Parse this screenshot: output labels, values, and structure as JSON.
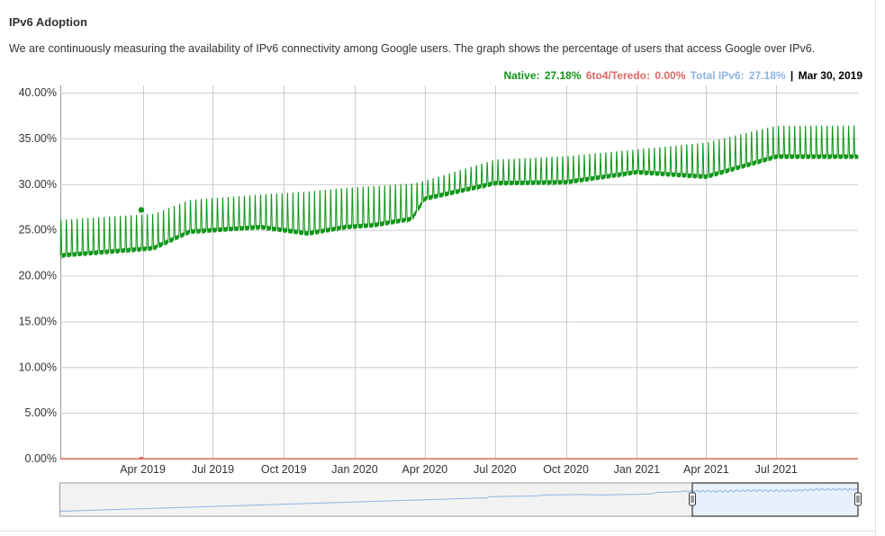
{
  "header": {
    "title": "IPv6 Adoption",
    "description": "We are continuously measuring the availability of IPv6 connectivity among Google users. The graph shows the percentage of users that access Google over IPv6."
  },
  "legend": {
    "native_label": "Native:",
    "native_value": "27.18%",
    "teredo_label": "6to4/Teredo:",
    "teredo_value": "0.00%",
    "total_label": "Total IPv6:",
    "total_value": "27.18%",
    "separator": "|",
    "date": "Mar 30, 2019"
  },
  "colors": {
    "native": "#109618",
    "teredo": "#dc3912",
    "total": "#8eb4e3",
    "grid": "#cccccc",
    "navigator_fill": "#e8f0fb"
  },
  "chart_data": {
    "type": "line",
    "title": "",
    "xlabel": "",
    "ylabel": "",
    "x_range": [
      "2018-12-15",
      "2021-10-15"
    ],
    "ylim": [
      0,
      40
    ],
    "y_ticks": [
      0,
      5,
      10,
      15,
      20,
      25,
      30,
      35,
      40
    ],
    "y_tick_labels": [
      "0.00%",
      "5.00%",
      "10.00%",
      "15.00%",
      "20.00%",
      "25.00%",
      "30.00%",
      "35.00%",
      "40.00%"
    ],
    "x_ticks": [
      "2019-04-01",
      "2019-07-01",
      "2019-10-01",
      "2020-01-01",
      "2020-04-01",
      "2020-07-01",
      "2020-10-01",
      "2021-01-01",
      "2021-04-01",
      "2021-07-01"
    ],
    "x_tick_labels": [
      "Apr 2019",
      "Jul 2019",
      "Oct 2019",
      "Jan 2020",
      "Apr 2020",
      "Jul 2020",
      "Oct 2020",
      "Jan 2021",
      "Apr 2021",
      "Jul 2021"
    ],
    "grid": true,
    "weekly_oscillation": true,
    "series": [
      {
        "name": "Native",
        "color": "#109618",
        "weekday_baseline": [
          {
            "x": "2018-12-15",
            "y": 22.2
          },
          {
            "x": "2019-03-01",
            "y": 22.7
          },
          {
            "x": "2019-04-15",
            "y": 23.0
          },
          {
            "x": "2019-06-01",
            "y": 24.8
          },
          {
            "x": "2019-09-01",
            "y": 25.3
          },
          {
            "x": "2019-11-01",
            "y": 24.6
          },
          {
            "x": "2019-12-20",
            "y": 25.3
          },
          {
            "x": "2020-01-25",
            "y": 25.5
          },
          {
            "x": "2020-03-15",
            "y": 26.2
          },
          {
            "x": "2020-04-01",
            "y": 28.4
          },
          {
            "x": "2020-07-01",
            "y": 30.1
          },
          {
            "x": "2020-10-01",
            "y": 30.2
          },
          {
            "x": "2021-01-01",
            "y": 31.3
          },
          {
            "x": "2021-04-01",
            "y": 30.8
          },
          {
            "x": "2021-07-01",
            "y": 33.0
          },
          {
            "x": "2021-10-15",
            "y": 33.0
          }
        ],
        "weekend_peak": [
          {
            "x": "2018-12-15",
            "y": 26.6
          },
          {
            "x": "2019-04-15",
            "y": 27.2
          },
          {
            "x": "2019-06-01",
            "y": 28.7
          },
          {
            "x": "2019-09-01",
            "y": 29.3
          },
          {
            "x": "2020-01-01",
            "y": 30.2
          },
          {
            "x": "2020-04-01",
            "y": 30.6
          },
          {
            "x": "2020-07-01",
            "y": 33.0
          },
          {
            "x": "2020-10-01",
            "y": 33.4
          },
          {
            "x": "2021-01-01",
            "y": 34.1
          },
          {
            "x": "2021-04-01",
            "y": 35.0
          },
          {
            "x": "2021-07-01",
            "y": 36.8
          },
          {
            "x": "2021-10-15",
            "y": 36.8
          }
        ]
      },
      {
        "name": "6to4/Teredo",
        "color": "#dc3912",
        "values": [
          {
            "x": "2018-12-15",
            "y": 0.0
          },
          {
            "x": "2021-10-15",
            "y": 0.0
          }
        ]
      }
    ],
    "highlight": {
      "series": "Native",
      "x": "2019-03-30",
      "y": 27.18
    },
    "annotations": []
  }
}
